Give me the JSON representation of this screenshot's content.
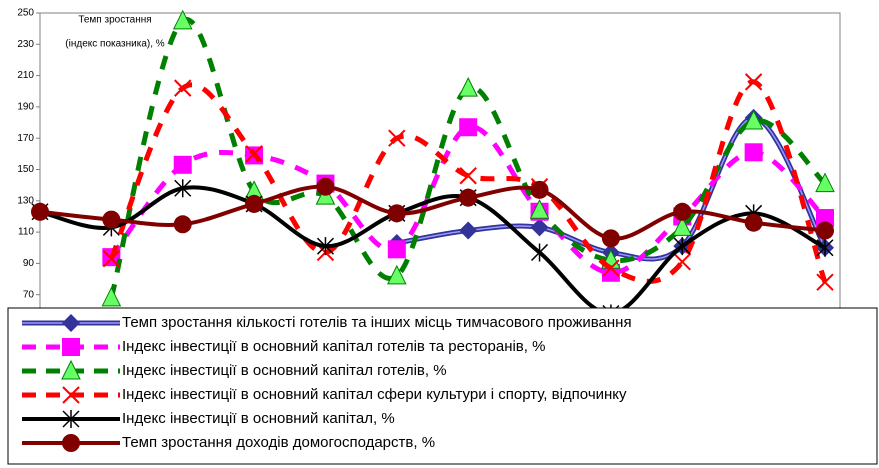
{
  "chart_data": {
    "type": "line",
    "annotations": [
      "Темп зростання",
      "(індекс показника), %"
    ],
    "categories": [
      null,
      null,
      null,
      null,
      null,
      null,
      null,
      null,
      null,
      null,
      null,
      null
    ],
    "series": [
      {
        "name": "Темп зростання кількості готелів та інших місць тимчасового проживання",
        "color": "#333399",
        "marker": "diamond",
        "dash": "solid",
        "values": [
          null,
          null,
          null,
          null,
          null,
          103,
          111,
          113,
          97,
          101,
          183,
          100
        ]
      },
      {
        "name": "Індекс інвестиції в основний капітал готелів та ресторанів, %",
        "color": "#ff00ff",
        "marker": "square",
        "dash": "dashed",
        "values": [
          null,
          94,
          153,
          159,
          141,
          99,
          177,
          123,
          84,
          120,
          161,
          119
        ]
      },
      {
        "name": "Індекс інвестиції в основний капітал готелів, %",
        "color": "#008000",
        "marker": "triangle",
        "dash": "dashed",
        "values": [
          null,
          68,
          245,
          136,
          133,
          82,
          202,
          124,
          92,
          113,
          181,
          141
        ]
      },
      {
        "name": "Індекс інвестиції в основний капітал сфери культури і спорту, відпочинку",
        "color": "#ff0000",
        "marker": "x",
        "dash": "dashed",
        "values": [
          null,
          93,
          202,
          160,
          97,
          170,
          146,
          139,
          87,
          91,
          206,
          78
        ]
      },
      {
        "name": "Індекс інвестиції в основний капітал, %",
        "color": "#000000",
        "marker": "star",
        "dash": "solid",
        "values": [
          123,
          113,
          138,
          128,
          101,
          122,
          132,
          97,
          58,
          101,
          122,
          100
        ]
      },
      {
        "name": "Темп зростання доходів домогосподарств, %",
        "color": "#800000",
        "marker": "circle",
        "dash": "solid",
        "values": [
          123,
          118,
          115,
          128,
          139,
          122,
          132,
          137,
          106,
          123,
          116,
          111
        ]
      }
    ],
    "ylim": [
      50,
      250
    ],
    "yticks": [
      70,
      90,
      110,
      130,
      150,
      170,
      190,
      210,
      230,
      250
    ],
    "grid": false
  }
}
